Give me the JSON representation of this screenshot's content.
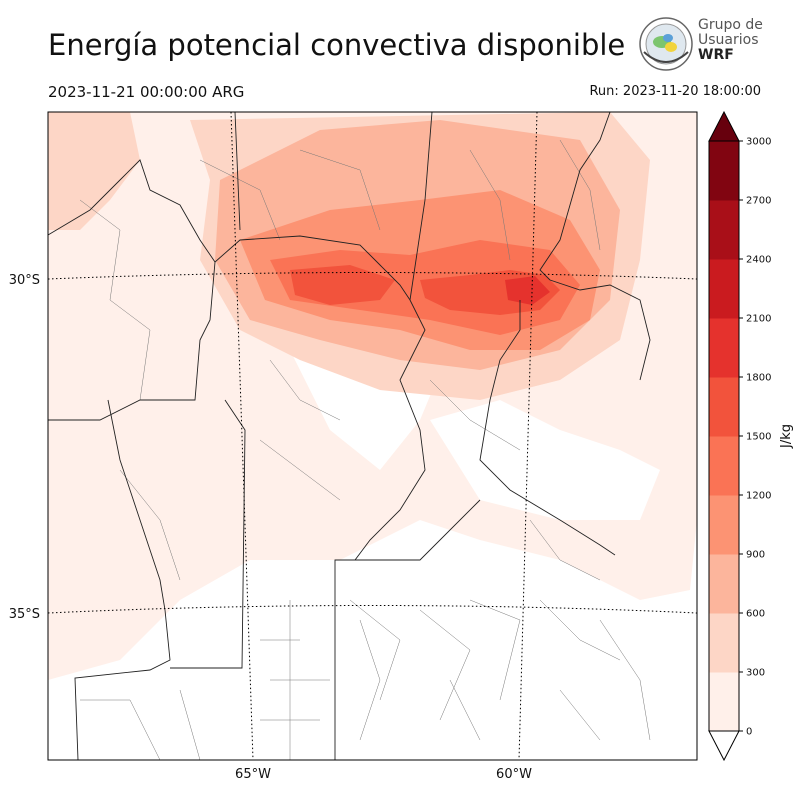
{
  "header": {
    "title": "Energía potencial convectiva disponible",
    "valid_time": "2023-11-21 00:00:00 ARG",
    "run_time": "Run: 2023-11-20 18:00:00"
  },
  "logo": {
    "line1": "Grupo de",
    "line2": "Usuarios",
    "line3": "WRF"
  },
  "map": {
    "lat_labels": [
      "30°S",
      "35°S"
    ],
    "lon_labels": [
      "65°W",
      "60°W"
    ]
  },
  "colorbar": {
    "unit": "J/kg",
    "ticks": [
      "0",
      "300",
      "600",
      "900",
      "1200",
      "1500",
      "1800",
      "2100",
      "2400",
      "2700",
      "3000"
    ],
    "colors": [
      "#fff0ea",
      "#fdd6c6",
      "#fcb59c",
      "#fc9373",
      "#fa7355",
      "#f2533c",
      "#e5322d",
      "#ca1b1f",
      "#a90f18",
      "#810511"
    ],
    "extend_colors": {
      "under": "#ffffff",
      "over": "#67000d"
    }
  }
}
